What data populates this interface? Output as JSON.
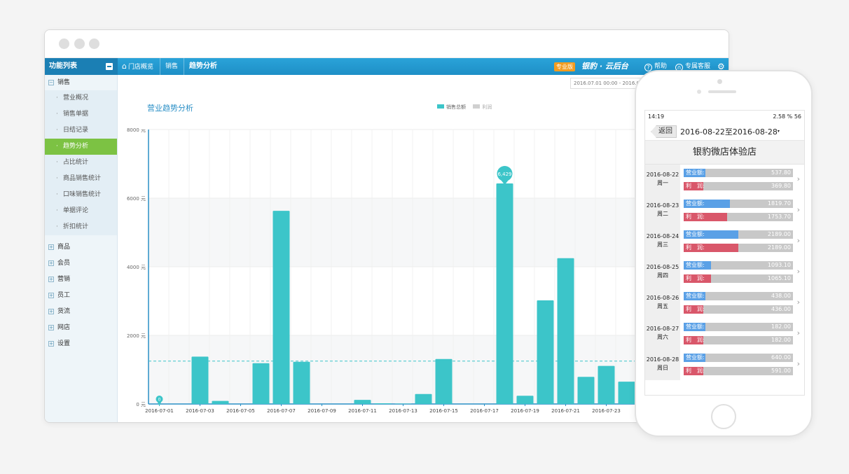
{
  "topbar": {
    "menu_title": "功能列表",
    "breadcrumb": [
      "门店概览",
      "销售",
      "趋势分析"
    ],
    "edition_badge": "专业版",
    "brand": "银豹 · 云后台",
    "help": "帮助",
    "service": "专属客服"
  },
  "sidebar": {
    "open_group": "销售",
    "items": [
      "营业概况",
      "销售单据",
      "日结记录",
      "趋势分析",
      "占比统计",
      "商品销售统计",
      "口味销售统计",
      "单据评论",
      "折扣统计"
    ],
    "active_index": 3,
    "groups": [
      "商品",
      "会员",
      "营销",
      "员工",
      "货流",
      "网店",
      "设置"
    ]
  },
  "filter": {
    "date_range": "2016.07.01 00:00  -  2016.07"
  },
  "chart": {
    "title": "营业趋势分析",
    "legend": [
      "销售总额",
      "利润"
    ]
  },
  "colors": {
    "bar": "#3cc5c9",
    "accent": "#2a8fc6",
    "active": "#7cc243",
    "revenue": "#5aa0e6",
    "profit": "#d9576a"
  },
  "chart_data": {
    "type": "bar",
    "title": "营业趋势分析",
    "xlabel": "",
    "ylabel": "",
    "ylim": [
      0,
      8000
    ],
    "yticks": [
      "0 元",
      "2000 元",
      "4000 元",
      "6000 元",
      "8000 元"
    ],
    "categories": [
      "2016-07-01",
      "2016-07-02",
      "2016-07-03",
      "2016-07-04",
      "2016-07-05",
      "2016-07-06",
      "2016-07-07",
      "2016-07-08",
      "2016-07-09",
      "2016-07-10",
      "2016-07-11",
      "2016-07-12",
      "2016-07-13",
      "2016-07-14",
      "2016-07-15",
      "2016-07-16",
      "2016-07-17",
      "2016-07-18",
      "2016-07-19",
      "2016-07-20",
      "2016-07-21",
      "2016-07-22",
      "2016-07-23",
      "2016-07-24"
    ],
    "xtick_labels": [
      "2016-07-01",
      "2016-07-03",
      "2016-07-05",
      "2016-07-07",
      "2016-07-09",
      "2016-07-11",
      "2016-07-13",
      "2016-07-15",
      "2016-07-17",
      "2016-07-19",
      "2016-07-21",
      "2016-07-23"
    ],
    "series": [
      {
        "name": "销售总额",
        "values": [
          0,
          0,
          1380,
          90,
          0,
          1190,
          5630,
          1230,
          0,
          0,
          120,
          20,
          10,
          290,
          1310,
          0,
          0,
          6429,
          240,
          3020,
          4250,
          790,
          1110,
          650
        ]
      }
    ],
    "average_line": 1250,
    "data_labels": [
      {
        "index": 0,
        "text": "0"
      },
      {
        "index": 17,
        "text": "6,429"
      }
    ],
    "grid": true
  },
  "mobile": {
    "status_time": "14:19",
    "status_right": "2.58 %  56",
    "back": "返回",
    "range": "2016-08-22至2016-08-28",
    "range_caret": "▾",
    "shop": "银豹微店体验店",
    "revenue_label": "营业额:",
    "profit_label": "利　润:",
    "days": [
      {
        "date": "2016-08-22",
        "weekday": "周一",
        "revenue": "537.80",
        "profit": "369.80",
        "rev_frac": 0.0,
        "pro_frac": 0.0
      },
      {
        "date": "2016-08-23",
        "weekday": "周二",
        "revenue": "1819.70",
        "profit": "1753.70",
        "rev_frac": 0.42,
        "pro_frac": 0.4
      },
      {
        "date": "2016-08-24",
        "weekday": "周三",
        "revenue": "2189.00",
        "profit": "2189.00",
        "rev_frac": 0.5,
        "pro_frac": 0.5
      },
      {
        "date": "2016-08-25",
        "weekday": "周四",
        "revenue": "1093.10",
        "profit": "1065.10",
        "rev_frac": 0.25,
        "pro_frac": 0.25
      },
      {
        "date": "2016-08-26",
        "weekday": "周五",
        "revenue": "438.00",
        "profit": "436.00",
        "rev_frac": 0.0,
        "pro_frac": 0.0
      },
      {
        "date": "2016-08-27",
        "weekday": "周六",
        "revenue": "182.00",
        "profit": "182.00",
        "rev_frac": 0.0,
        "pro_frac": 0.0
      },
      {
        "date": "2016-08-28",
        "weekday": "周日",
        "revenue": "640.00",
        "profit": "591.00",
        "rev_frac": 0.15,
        "pro_frac": 0.13
      }
    ]
  }
}
